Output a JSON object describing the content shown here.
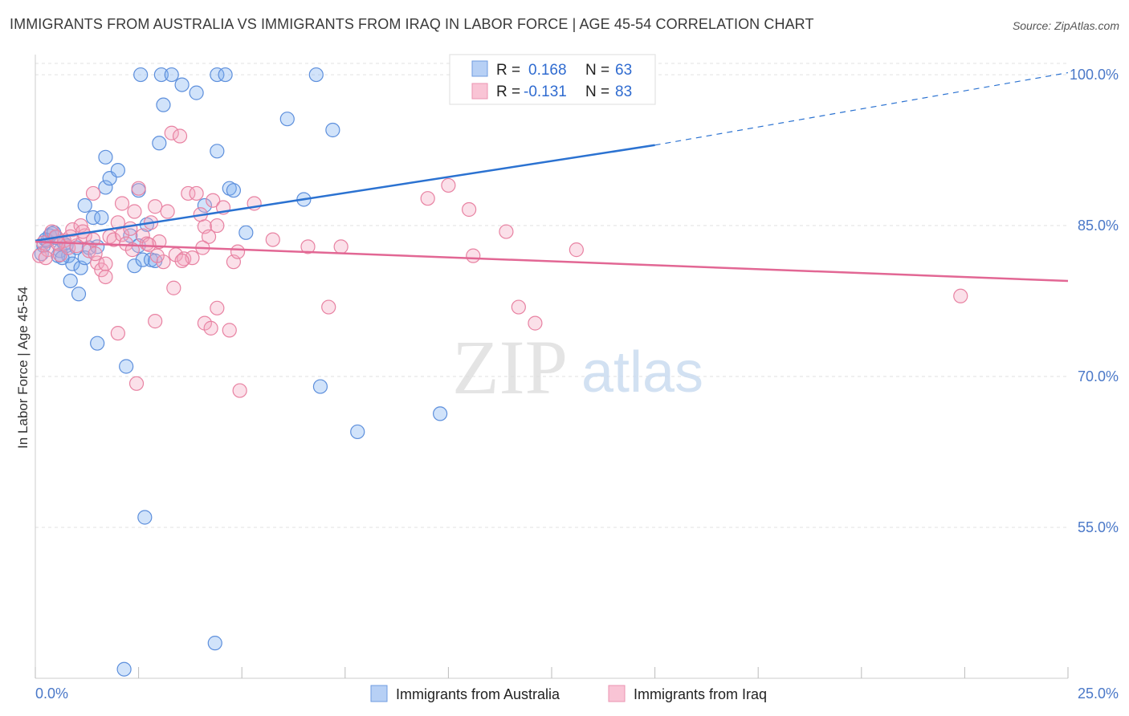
{
  "title": "IMMIGRANTS FROM AUSTRALIA VS IMMIGRANTS FROM IRAQ IN LABOR FORCE | AGE 45-54 CORRELATION CHART",
  "source": "Source: ZipAtlas.com",
  "watermark": {
    "zip": "ZIP",
    "atlas": "atlas"
  },
  "chart_data": {
    "type": "scatter",
    "xlabel": "",
    "ylabel": "In Labor Force | Age 45-54",
    "xlim": [
      0,
      25
    ],
    "ylim": [
      40,
      102
    ],
    "x_tick_labels": [
      "0.0%",
      "25.0%"
    ],
    "y_ticks": [
      55,
      70,
      85,
      100
    ],
    "y_tick_labels": [
      "55.0%",
      "70.0%",
      "85.0%",
      "100.0%"
    ],
    "grid": true,
    "legend": {
      "position": "top-center",
      "entries": [
        {
          "r_label": "R =",
          "r_value": "0.168",
          "n_label": "N =",
          "n_value": "63"
        },
        {
          "r_label": "R =",
          "r_value": "-0.131",
          "n_label": "N =",
          "n_value": "83"
        }
      ]
    },
    "series": [
      {
        "name": "Immigrants from Australia",
        "color": "#7aaef0",
        "stroke": "#5d8fdc",
        "line_color": "#2b72d1",
        "trend": {
          "x0": 0,
          "y0": 83.5,
          "x1": 15,
          "y1": 93.0,
          "x_end": 25,
          "y_end": 100.2
        },
        "points": [
          [
            0.2,
            83.0
          ],
          [
            0.3,
            83.5
          ],
          [
            0.4,
            84.2
          ],
          [
            0.5,
            83.8
          ],
          [
            0.6,
            82.5
          ],
          [
            0.7,
            83.2
          ],
          [
            0.8,
            82.0
          ],
          [
            0.9,
            81.2
          ],
          [
            1.0,
            82.8
          ],
          [
            1.1,
            80.8
          ],
          [
            0.85,
            79.5
          ],
          [
            1.05,
            78.2
          ],
          [
            1.2,
            81.8
          ],
          [
            1.3,
            82.8
          ],
          [
            1.4,
            85.8
          ],
          [
            1.5,
            82.9
          ],
          [
            1.6,
            85.8
          ],
          [
            1.2,
            87.0
          ],
          [
            1.7,
            88.8
          ],
          [
            1.8,
            89.7
          ],
          [
            2.0,
            90.5
          ],
          [
            1.7,
            91.8
          ],
          [
            2.3,
            84.0
          ],
          [
            2.4,
            81.0
          ],
          [
            2.5,
            83.0
          ],
          [
            2.6,
            81.6
          ],
          [
            2.7,
            85.1
          ],
          [
            2.8,
            81.6
          ],
          [
            2.9,
            81.5
          ],
          [
            3.0,
            93.2
          ],
          [
            3.1,
            97.0
          ],
          [
            2.55,
            100.0
          ],
          [
            3.05,
            100.0
          ],
          [
            3.3,
            100.0
          ],
          [
            3.55,
            99.0
          ],
          [
            3.9,
            98.2
          ],
          [
            4.1,
            87.0
          ],
          [
            4.4,
            92.4
          ],
          [
            4.7,
            88.7
          ],
          [
            4.8,
            88.5
          ],
          [
            4.4,
            100.0
          ],
          [
            4.6,
            100.0
          ],
          [
            6.8,
            100.0
          ],
          [
            6.1,
            95.6
          ],
          [
            7.2,
            94.5
          ],
          [
            6.5,
            87.6
          ],
          [
            5.1,
            84.3
          ],
          [
            1.5,
            73.3
          ],
          [
            2.2,
            71.0
          ],
          [
            6.9,
            69.0
          ],
          [
            7.8,
            64.5
          ],
          [
            9.8,
            66.3
          ],
          [
            2.65,
            56.0
          ],
          [
            4.35,
            43.5
          ],
          [
            2.15,
            40.9
          ],
          [
            2.5,
            88.5
          ],
          [
            0.15,
            82.2
          ],
          [
            0.35,
            84.0
          ],
          [
            0.55,
            82.0
          ],
          [
            0.25,
            83.6
          ],
          [
            0.45,
            84.3
          ],
          [
            0.75,
            83.0
          ],
          [
            0.65,
            81.8
          ]
        ]
      },
      {
        "name": "Immigrants from Iraq",
        "color": "#f4a7c0",
        "stroke": "#e882a2",
        "line_color": "#e26794",
        "trend": {
          "x0": 0,
          "y0": 83.4,
          "x1": 25,
          "y1": 79.5
        },
        "points": [
          [
            0.1,
            82.0
          ],
          [
            0.2,
            83.3
          ],
          [
            0.3,
            82.6
          ],
          [
            0.4,
            84.4
          ],
          [
            0.5,
            83.9
          ],
          [
            0.6,
            82.1
          ],
          [
            0.7,
            83.5
          ],
          [
            0.8,
            82.8
          ],
          [
            0.9,
            84.6
          ],
          [
            1.0,
            83.0
          ],
          [
            1.1,
            85.0
          ],
          [
            1.2,
            84.0
          ],
          [
            1.3,
            82.5
          ],
          [
            1.4,
            83.6
          ],
          [
            1.5,
            81.3
          ],
          [
            1.6,
            80.6
          ],
          [
            1.7,
            81.2
          ],
          [
            1.8,
            83.9
          ],
          [
            1.9,
            83.6
          ],
          [
            2.0,
            85.3
          ],
          [
            2.1,
            84.1
          ],
          [
            2.2,
            83.2
          ],
          [
            2.3,
            84.7
          ],
          [
            2.4,
            86.4
          ],
          [
            2.5,
            88.7
          ],
          [
            2.6,
            84.0
          ],
          [
            2.7,
            83.2
          ],
          [
            2.8,
            85.3
          ],
          [
            2.9,
            86.9
          ],
          [
            3.0,
            83.4
          ],
          [
            3.1,
            81.4
          ],
          [
            3.2,
            86.4
          ],
          [
            3.3,
            94.2
          ],
          [
            3.4,
            82.1
          ],
          [
            3.5,
            93.9
          ],
          [
            3.6,
            81.7
          ],
          [
            3.7,
            88.2
          ],
          [
            3.8,
            81.8
          ],
          [
            3.9,
            88.2
          ],
          [
            4.0,
            86.1
          ],
          [
            4.1,
            84.9
          ],
          [
            4.2,
            83.9
          ],
          [
            4.3,
            87.5
          ],
          [
            4.4,
            85.0
          ],
          [
            4.55,
            86.8
          ],
          [
            4.8,
            81.4
          ],
          [
            4.9,
            82.4
          ],
          [
            5.3,
            87.2
          ],
          [
            5.75,
            83.6
          ],
          [
            6.6,
            82.9
          ],
          [
            7.4,
            82.9
          ],
          [
            1.4,
            88.2
          ],
          [
            2.1,
            87.2
          ],
          [
            3.35,
            78.8
          ],
          [
            2.9,
            75.5
          ],
          [
            4.1,
            75.3
          ],
          [
            4.25,
            74.8
          ],
          [
            4.4,
            76.8
          ],
          [
            4.7,
            74.6
          ],
          [
            2.0,
            74.3
          ],
          [
            2.45,
            69.3
          ],
          [
            4.95,
            68.6
          ],
          [
            7.1,
            76.9
          ],
          [
            9.5,
            87.7
          ],
          [
            10.0,
            89.0
          ],
          [
            10.5,
            86.6
          ],
          [
            10.6,
            82.0
          ],
          [
            11.4,
            84.4
          ],
          [
            11.7,
            76.9
          ],
          [
            12.1,
            75.3
          ],
          [
            13.1,
            82.6
          ],
          [
            22.4,
            78.0
          ],
          [
            0.25,
            81.8
          ],
          [
            0.55,
            83.2
          ],
          [
            0.85,
            83.9
          ],
          [
            1.15,
            84.4
          ],
          [
            1.7,
            79.9
          ],
          [
            2.35,
            82.6
          ],
          [
            2.75,
            83.1
          ],
          [
            3.55,
            81.5
          ],
          [
            4.05,
            82.8
          ],
          [
            2.95,
            82.0
          ],
          [
            1.45,
            82.2
          ]
        ]
      }
    ]
  }
}
